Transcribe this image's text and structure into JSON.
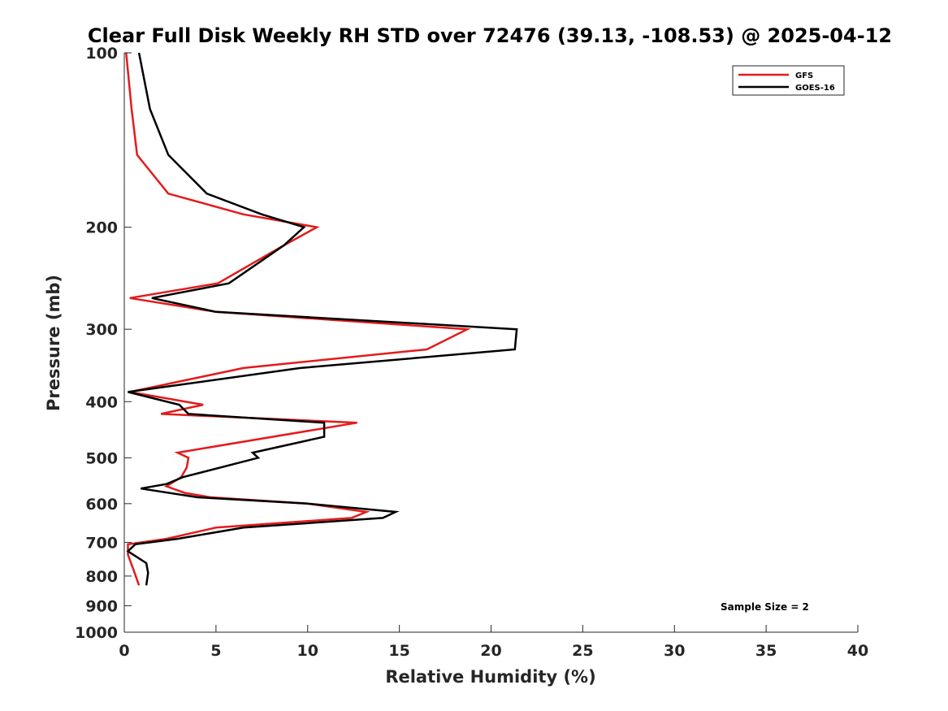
{
  "chart_data": {
    "type": "line",
    "title": "Clear Full Disk Weekly RH STD over 72476 (39.13, -108.53) @ 2025-04-12",
    "xlabel": "Relative Humidity (%)",
    "ylabel": "Pressure (mb)",
    "xlim": [
      0,
      40
    ],
    "ylim": [
      100,
      1000
    ],
    "yscale": "log",
    "y_reversed": true,
    "xticks": [
      0,
      5,
      10,
      15,
      20,
      25,
      30,
      35,
      40
    ],
    "yticks": [
      100,
      200,
      300,
      400,
      500,
      600,
      700,
      800,
      900,
      1000
    ],
    "legend_position": "top-right",
    "annotation": "Sample Size = 2",
    "series": [
      {
        "name": "GFS",
        "color": "#e41a1c",
        "x": [
          0.1,
          0.4,
          0.7,
          2.4,
          6.5,
          10.5,
          8.7,
          5.1,
          0.3,
          5.0,
          18.7,
          16.5,
          6.5,
          0.3,
          4.3,
          2.0,
          12.7,
          2.9,
          3.5,
          3.4,
          3.1,
          2.3,
          3.3,
          4.7,
          10.0,
          13.2,
          12.4,
          5.0,
          2.3,
          0.2,
          0.2,
          0.5,
          0.8
        ],
        "y": [
          100,
          125,
          150,
          175,
          190,
          200,
          215,
          250,
          265,
          280,
          300,
          325,
          350,
          385,
          405,
          420,
          435,
          490,
          500,
          520,
          540,
          560,
          575,
          585,
          600,
          620,
          635,
          660,
          690,
          705,
          735,
          780,
          830
        ]
      },
      {
        "name": "GOES-16",
        "color": "#000000",
        "x": [
          0.8,
          1.4,
          2.4,
          4.5,
          7.5,
          9.8,
          8.7,
          5.7,
          1.5,
          5.0,
          21.4,
          21.3,
          9.6,
          0.2,
          3.0,
          3.5,
          10.9,
          10.9,
          7.0,
          7.3,
          3.2,
          2.3,
          0.9,
          4.0,
          10.0,
          14.8,
          14.1,
          6.5,
          2.9,
          0.6,
          0.2,
          1.2,
          1.3,
          1.2
        ],
        "y": [
          100,
          125,
          150,
          175,
          190,
          200,
          215,
          250,
          265,
          280,
          300,
          325,
          350,
          385,
          405,
          420,
          435,
          460,
          490,
          500,
          540,
          555,
          565,
          585,
          600,
          620,
          635,
          660,
          690,
          705,
          725,
          760,
          790,
          830
        ]
      }
    ]
  }
}
